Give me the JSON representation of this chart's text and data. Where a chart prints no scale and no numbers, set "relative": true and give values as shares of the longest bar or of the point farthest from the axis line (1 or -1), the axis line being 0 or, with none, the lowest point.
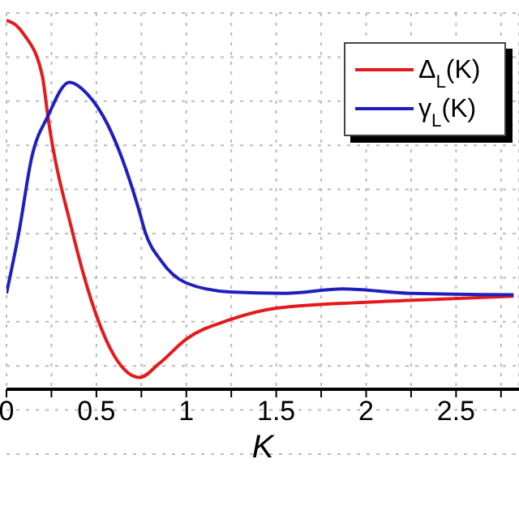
{
  "chart_data": {
    "type": "line",
    "relative": true,
    "xlabel": "K",
    "xlim": [
      0,
      2.85
    ],
    "xticks": [
      0,
      {
        "value": 0.25,
        "label": null
      },
      0.5,
      {
        "value": 0.75,
        "label": null
      },
      1,
      {
        "value": 1.25,
        "label": null
      },
      1.5,
      {
        "value": 1.75,
        "label": null
      },
      2,
      {
        "value": 2.25,
        "label": null
      },
      2.5,
      {
        "value": 2.75,
        "label": null
      }
    ],
    "grid": true,
    "legend": "top right",
    "marker": "none",
    "line_style": "solid",
    "series": [
      {
        "name": "Δ$_{L}$(K)",
        "color": "#e41a1c",
        "x": [
          0,
          0.05,
          0.1,
          0.2,
          0.23,
          0.366,
          0.5,
          0.6,
          0.74,
          0.85,
          1.0,
          1.24,
          1.5,
          2.0,
          2.4,
          2.82
        ],
        "values": [
          1.0,
          0.988,
          0.96,
          0.848,
          0.74,
          0.428,
          0.2,
          0.09,
          0.032,
          0.07,
          0.136,
          0.188,
          0.22,
          0.236,
          0.244,
          0.252
        ]
      },
      {
        "name": "γ$_{L}$(K)",
        "color": "#1f1fc0",
        "x": [
          0,
          0.07,
          0.14,
          0.23,
          0.35,
          0.45,
          0.56,
          0.74,
          0.77,
          0.86,
          1.0,
          1.24,
          1.55,
          1.87,
          2.24,
          2.82
        ],
        "values": [
          0.26,
          0.428,
          0.628,
          0.74,
          0.832,
          0.8,
          0.72,
          0.48,
          0.428,
          0.348,
          0.288,
          0.264,
          0.26,
          0.272,
          0.26,
          0.256
        ]
      }
    ]
  }
}
